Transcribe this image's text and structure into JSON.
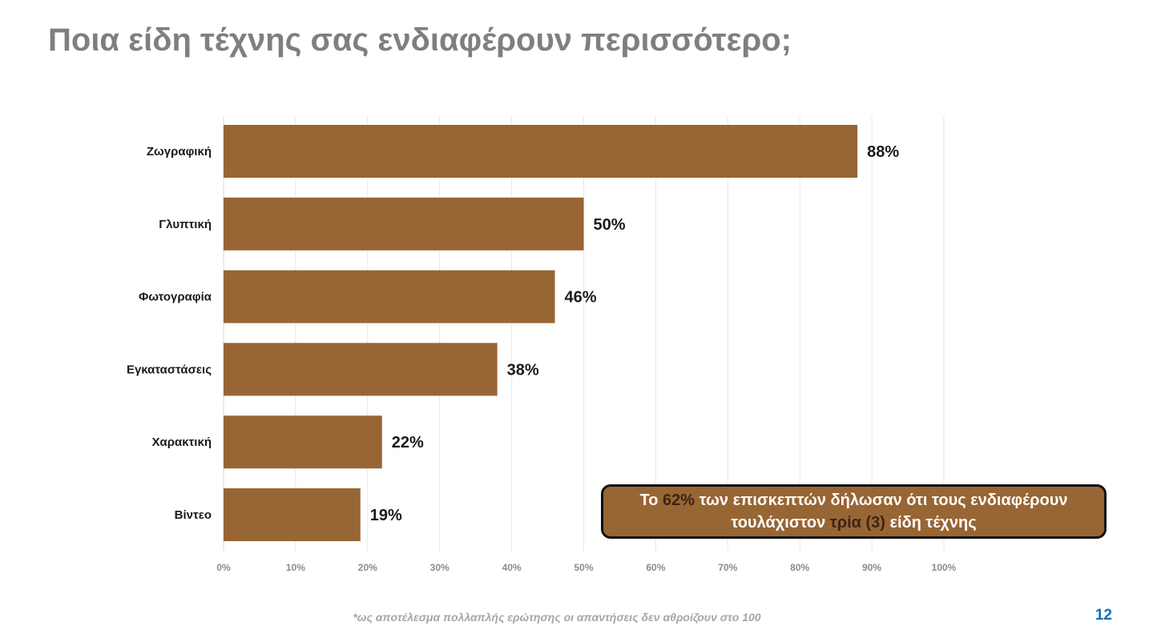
{
  "slide": {
    "title": "Ποια είδη τέχνης σας ενδιαφέρουν περισσότερο;",
    "footnote": "*ως αποτέλεσμα πολλαπλής ερώτησης οι απαντήσεις δεν αθροίζουν στο 100",
    "page_number": "12"
  },
  "callout": {
    "part1": "Το ",
    "highlight1": "62%",
    "part2": " των επισκεπτών δήλωσαν ότι τους ενδιαφέρουν",
    "part3": "τουλάχιστον ",
    "highlight2": "τρία (3)",
    "part4": " είδη τέχνης"
  },
  "colors": {
    "bar": "#986534",
    "callout_fill": "#986534",
    "callout_highlight": "#3d2410",
    "title": "#7f7f7f",
    "page_number": "#0f6fb5"
  },
  "chart_data": {
    "type": "bar",
    "orientation": "horizontal",
    "categories": [
      "Ζωγραφική",
      "Γλυπτική",
      "Φωτογραφία",
      "Εγκαταστάσεις",
      "Χαρακτική",
      "Βίντεο"
    ],
    "values": [
      88,
      50,
      46,
      38,
      22,
      19
    ],
    "value_labels": [
      "88%",
      "50%",
      "46%",
      "38%",
      "22%",
      "19%"
    ],
    "xlim": [
      0,
      100
    ],
    "x_ticks": [
      "0%",
      "10%",
      "20%",
      "30%",
      "40%",
      "50%",
      "60%",
      "70%",
      "80%",
      "90%",
      "100%"
    ],
    "grid": "vertical",
    "legend": "none"
  }
}
